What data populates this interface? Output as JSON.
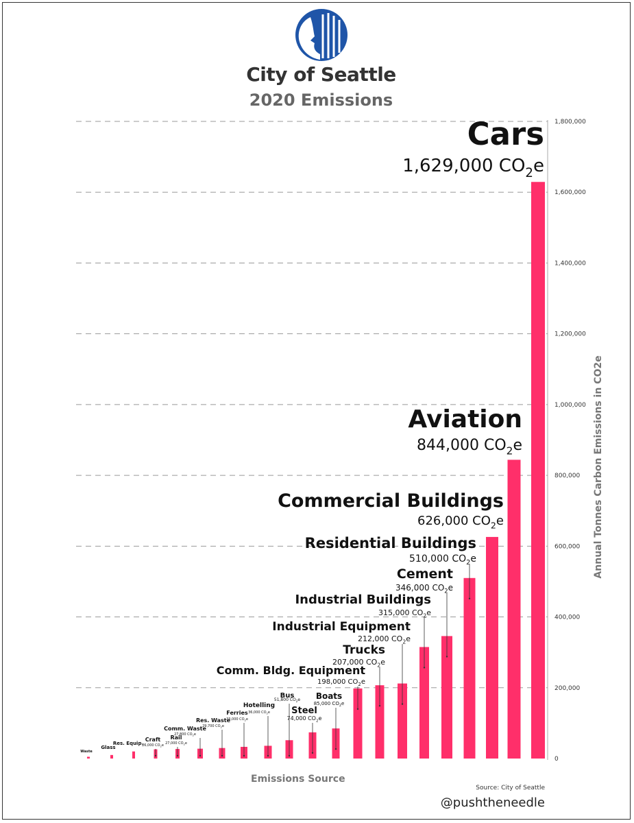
{
  "header": {
    "city": "City of Seattle",
    "subtitle": "2020 Emissions"
  },
  "logo": {
    "name": "seattle-seal-icon",
    "color": "#1f55a8"
  },
  "footer": {
    "xlabel": "Emissions Source",
    "source": "Source: City of Seattle",
    "handle": "@pushtheneedle"
  },
  "chart_data": {
    "type": "bar",
    "title": "2020 Emissions",
    "xlabel": "Emissions Source",
    "ylabel": "Annual Tonnes Carbon Emissions in CO2e",
    "ylim": [
      0,
      1800000
    ],
    "yticks": [
      0,
      200000,
      400000,
      600000,
      800000,
      1000000,
      1200000,
      1400000,
      1600000,
      1800000
    ],
    "ytick_labels": [
      "0",
      "200,000",
      "400,000",
      "600,000",
      "800,000",
      "1,000,000",
      "1,200,000",
      "1,400,000",
      "1,600,000",
      "1,800,000"
    ],
    "grid": true,
    "bar_color": "#ff2f6a",
    "categories": [
      "Waste",
      "Glass",
      "Res. Equip.",
      "Craft",
      "Rail",
      "Comm. Waste",
      "Res. Waste",
      "Ferries",
      "Hotelling",
      "Bus",
      "Steel",
      "Boats",
      "Comm. Bldg. Equipment",
      "Trucks",
      "Industrial Equipment",
      "Industrial Buildings",
      "Cement",
      "Residential Buildings",
      "Commercial Buildings",
      "Aviation",
      "Cars"
    ],
    "values": [
      5000,
      10000,
      20000,
      26000,
      27000,
      27800,
      29700,
      33000,
      36000,
      51800,
      74000,
      85000,
      198000,
      207000,
      212000,
      315000,
      346000,
      510000,
      626000,
      844000,
      1629000
    ],
    "value_labels": [
      "",
      "",
      "",
      "26,000",
      "27,000",
      "27,800",
      "29,700",
      "33,000",
      "36,000",
      "51,800",
      "74,000",
      "85,000",
      "198,000",
      "207,000",
      "212,000",
      "315,000",
      "346,000",
      "510,000",
      "626,000",
      "844,000",
      "1,629,000"
    ],
    "unit": "CO2e"
  }
}
